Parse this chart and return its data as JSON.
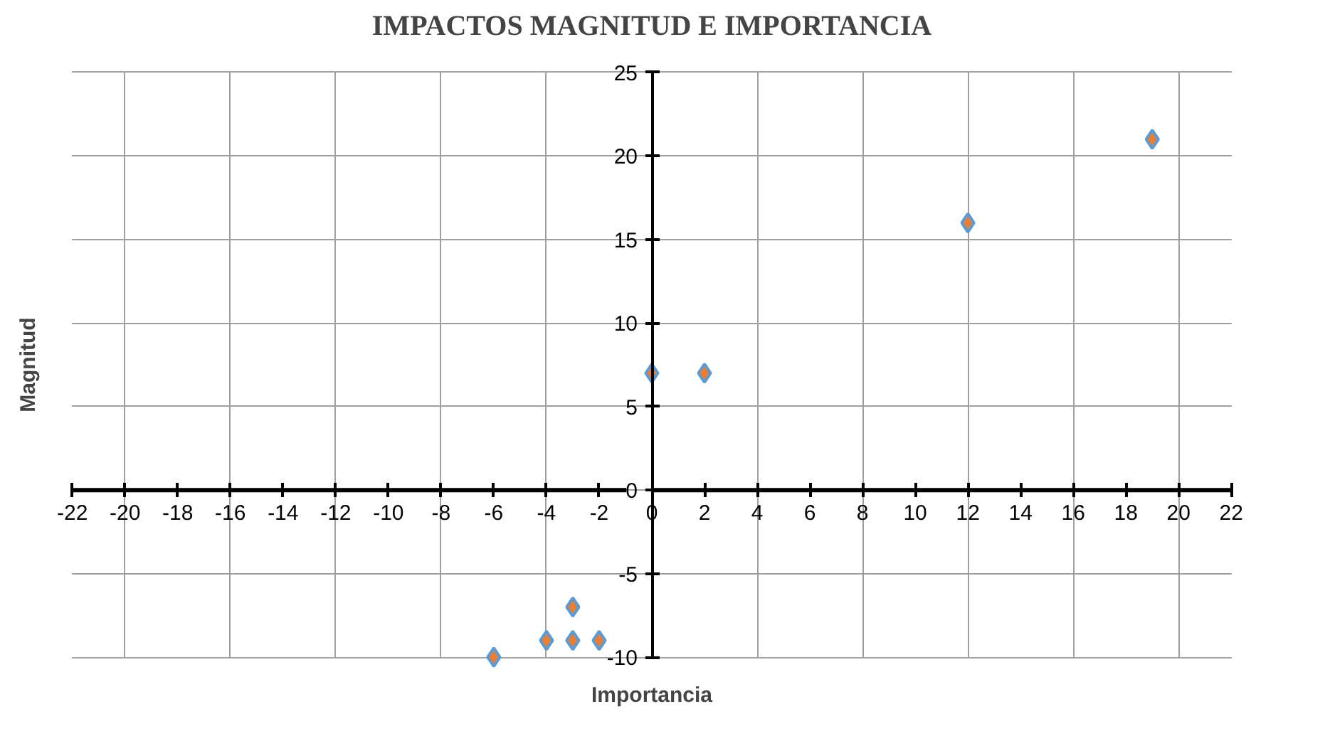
{
  "chart_data": {
    "type": "scatter",
    "title": "IMPACTOS MAGNITUD E IMPORTANCIA",
    "xlabel": "Importancia",
    "ylabel": "Magnitud",
    "x": [
      0,
      2,
      12,
      19,
      -6,
      -4,
      -3,
      -3,
      -2
    ],
    "values": [
      7,
      7,
      16,
      21,
      -10,
      -9,
      -9,
      -7,
      -9
    ],
    "color": "#ed7d31",
    "marker": "diamond",
    "xlim": [
      -22,
      22
    ],
    "ylim": [
      -10,
      25
    ],
    "xticks": [
      -22,
      -20,
      -18,
      -16,
      -14,
      -12,
      -10,
      -8,
      -6,
      -4,
      -2,
      0,
      2,
      4,
      6,
      8,
      10,
      12,
      14,
      16,
      18,
      20,
      22
    ],
    "yticks": [
      -10,
      -5,
      0,
      5,
      10,
      15,
      20,
      25
    ],
    "grid": true
  }
}
